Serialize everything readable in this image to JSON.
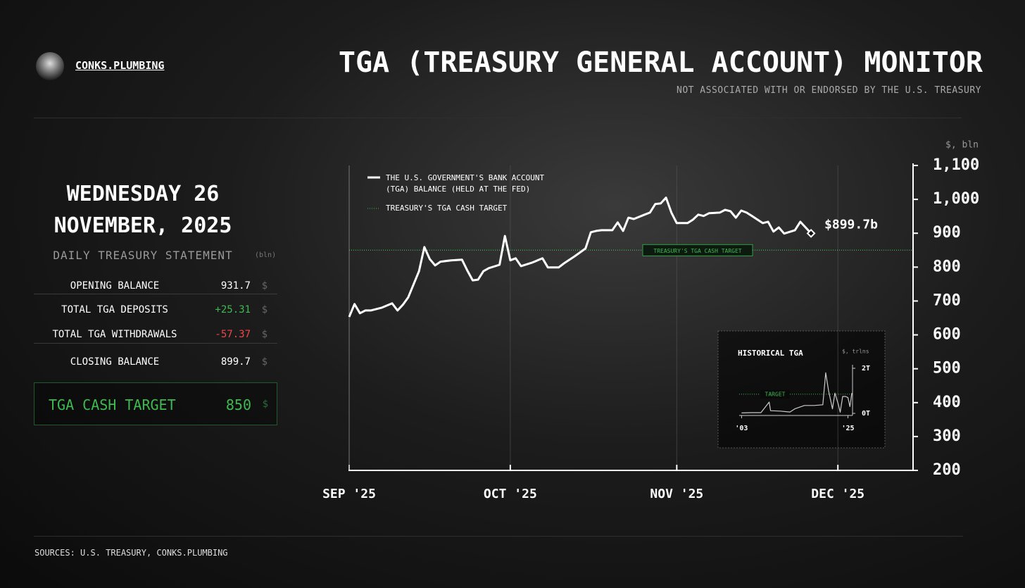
{
  "header": {
    "brand": "CONKS.PLUMBING",
    "title": "TGA (TREASURY GENERAL ACCOUNT) MONITOR",
    "subtitle": "NOT ASSOCIATED WITH OR ENDORSED BY THE U.S. TREASURY"
  },
  "statement": {
    "date": [
      "WEDNESDAY 26",
      "NOVEMBER, 2025"
    ],
    "title": "DAILY TREASURY STATEMENT",
    "unit": "(bln)",
    "rows": [
      [
        "OPENING BALANCE",
        "931.7",
        "$"
      ],
      [
        "TOTAL TGA DEPOSITS",
        "+25.31",
        "$"
      ],
      [
        "TOTAL TGA WITHDRAWALS",
        "-57.37",
        "$"
      ],
      [
        "CLOSING BALANCE",
        "899.7",
        "$"
      ]
    ],
    "target": [
      "TGA CASH TARGET",
      "850",
      "$"
    ]
  },
  "sources": "SOURCES: U.S. TREASURY, CONKS.PLUMBING",
  "chart_data": [
    {
      "type": "line",
      "y_unit": "$, bln",
      "grid": true,
      "xlim": [
        0,
        105
      ],
      "xticks": [
        {
          "value": 0,
          "label": "SEP '25"
        },
        {
          "value": 30,
          "label": "OCT '25"
        },
        {
          "value": 61,
          "label": "NOV '25"
        },
        {
          "value": 91,
          "label": "DEC '25"
        }
      ],
      "ylim": [
        200,
        1100
      ],
      "yticks": [
        200,
        300,
        400,
        500,
        600,
        700,
        800,
        900,
        {
          "value": 1000,
          "label": "1,000"
        },
        {
          "value": 1100,
          "label": "1,100"
        }
      ],
      "x": [
        0,
        1,
        2,
        3,
        4,
        6,
        8,
        9,
        10,
        11,
        13,
        14,
        15,
        16,
        17,
        19,
        21,
        22,
        23,
        24,
        25,
        26,
        28,
        29,
        30,
        31,
        32,
        34,
        36,
        37,
        39,
        40,
        42,
        44,
        45,
        46,
        47,
        49,
        50,
        51,
        52,
        53,
        55,
        56,
        57,
        58,
        59,
        60,
        61,
        63,
        64,
        65,
        66,
        67,
        69,
        70,
        71,
        72,
        73,
        74,
        75,
        77,
        78,
        79,
        80,
        81,
        83,
        84,
        86
      ],
      "series": [
        {
          "name": "THE U.S. GOVERNMENT'S BANK ACCOUNT (TGA) BALANCE (HELD AT THE FED)",
          "color": "#ffffff",
          "values": [
            653,
            691,
            664,
            672,
            672,
            680,
            693,
            672,
            689,
            711,
            788,
            859,
            824,
            805,
            816,
            820,
            822,
            790,
            761,
            763,
            788,
            797,
            807,
            892,
            820,
            826,
            803,
            813,
            826,
            799,
            799,
            811,
            832,
            855,
            903,
            907,
            909,
            909,
            932,
            907,
            946,
            942,
            955,
            961,
            986,
            988,
            1005,
            961,
            930,
            930,
            940,
            955,
            951,
            959,
            961,
            969,
            965,
            946,
            967,
            961,
            951,
            930,
            934,
            905,
            917,
            899,
            909,
            934,
            899.7
          ]
        }
      ],
      "last_value_label": "$899.7b",
      "target": {
        "value": 850,
        "label": "TREASURY'S TGA CASH TARGET",
        "color": "#3fb950"
      }
    },
    {
      "type": "line",
      "title": "HISTORICAL TGA",
      "y_unit": "$, trlns",
      "xlim": [
        2002.5,
        2025.8
      ],
      "xticks": [
        {
          "value": 2003,
          "label": "'03"
        },
        {
          "value": 2025,
          "label": "'25"
        }
      ],
      "ylim": [
        0,
        2
      ],
      "yticks": [
        {
          "value": 0,
          "label": "0T"
        },
        {
          "value": 2,
          "label": "2T"
        }
      ],
      "x": [
        2003,
        2005,
        2007,
        2008.7,
        2009,
        2011,
        2013,
        2014,
        2016,
        2018,
        2019.8,
        2020.4,
        2021,
        2021.8,
        2022.3,
        2023,
        2023.4,
        2023.9,
        2024.5,
        2025,
        2025.4,
        2025.8
      ],
      "series": [
        {
          "color": "#cccccc",
          "values": [
            0.02,
            0.03,
            0.03,
            0.5,
            0.12,
            0.1,
            0.06,
            0.2,
            0.35,
            0.35,
            0.38,
            1.8,
            1.0,
            0.2,
            0.9,
            0.4,
            0.05,
            0.75,
            0.75,
            0.7,
            0.3,
            0.9
          ]
        }
      ],
      "target": {
        "value": 0.85,
        "label": "TARGET",
        "color": "#3fb950"
      }
    }
  ]
}
